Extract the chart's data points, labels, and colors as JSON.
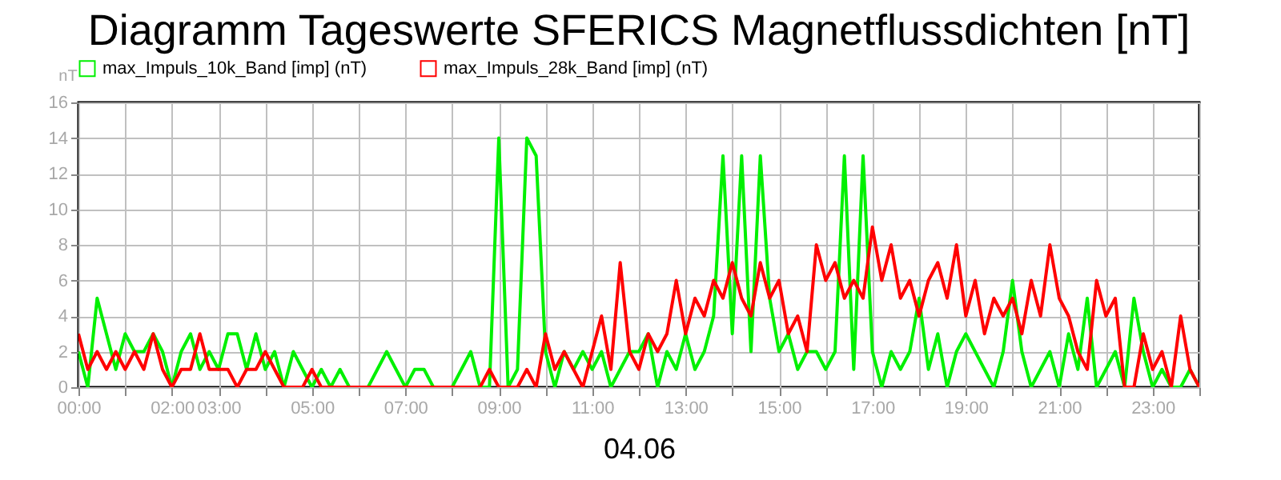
{
  "chart_data": {
    "type": "line",
    "title": "Diagramm Tageswerte SFERICS Magnetflussdichten [nT]",
    "xlabel": "04.06",
    "ylabel": "nT",
    "x": [
      0,
      0.2,
      0.4,
      0.6,
      0.8,
      1,
      1.2,
      1.4,
      1.6,
      1.8,
      2,
      2.2,
      2.4,
      2.6,
      2.8,
      3,
      3.2,
      3.4,
      3.6,
      3.8,
      4,
      4.2,
      4.4,
      4.6,
      4.8,
      5,
      5.2,
      5.4,
      5.6,
      5.8,
      6,
      6.2,
      6.4,
      6.6,
      6.8,
      7,
      7.2,
      7.4,
      7.6,
      7.8,
      8,
      8.2,
      8.4,
      8.6,
      8.8,
      9,
      9.2,
      9.4,
      9.6,
      9.8,
      10,
      10.2,
      10.4,
      10.6,
      10.8,
      11,
      11.2,
      11.4,
      11.6,
      11.8,
      12,
      12.2,
      12.4,
      12.6,
      12.8,
      13,
      13.2,
      13.4,
      13.6,
      13.8,
      14,
      14.2,
      14.4,
      14.6,
      14.8,
      15,
      15.2,
      15.4,
      15.6,
      15.8,
      16,
      16.2,
      16.4,
      16.6,
      16.8,
      17,
      17.2,
      17.4,
      17.6,
      17.8,
      18,
      18.2,
      18.4,
      18.6,
      18.8,
      19,
      19.2,
      19.4,
      19.6,
      19.8,
      20,
      20.2,
      20.4,
      20.6,
      20.8,
      21,
      21.2,
      21.4,
      21.6,
      21.8,
      22,
      22.2,
      22.4,
      22.6,
      22.8,
      23,
      23.2,
      23.4,
      23.6,
      23.8,
      24
    ],
    "series": [
      {
        "name": "max_Impuls_10k_Band [imp] (nT)",
        "color": "#00f000",
        "values": [
          2,
          0,
          5,
          3,
          1,
          3,
          2,
          2,
          3,
          2,
          0,
          2,
          3,
          1,
          2,
          1,
          3,
          3,
          1,
          3,
          1,
          2,
          0,
          2,
          1,
          0,
          1,
          0,
          1,
          0,
          0,
          0,
          1,
          2,
          1,
          0,
          1,
          1,
          0,
          0,
          0,
          1,
          2,
          0,
          0,
          14,
          0,
          1,
          14,
          13,
          2,
          0,
          2,
          1,
          2,
          1,
          2,
          0,
          1,
          2,
          2,
          3,
          0,
          2,
          1,
          3,
          1,
          2,
          4,
          13,
          3,
          13,
          2,
          13,
          5,
          2,
          3,
          1,
          2,
          2,
          1,
          2,
          13,
          1,
          13,
          2,
          0,
          2,
          1,
          2,
          5,
          1,
          3,
          0,
          2,
          3,
          2,
          1,
          0,
          2,
          6,
          2,
          0,
          1,
          2,
          0,
          3,
          1,
          5,
          0,
          1,
          2,
          0,
          5,
          2,
          0,
          1,
          0,
          0,
          1,
          0
        ]
      },
      {
        "name": "max_Impuls_28k_Band [imp] (nT)",
        "color": "#ff0000",
        "values": [
          3,
          1,
          2,
          1,
          2,
          1,
          2,
          1,
          3,
          1,
          0,
          1,
          1,
          3,
          1,
          1,
          1,
          0,
          1,
          1,
          2,
          1,
          0,
          0,
          0,
          1,
          0,
          0,
          0,
          0,
          0,
          0,
          0,
          0,
          0,
          0,
          0,
          0,
          0,
          0,
          0,
          0,
          0,
          0,
          1,
          0,
          0,
          0,
          1,
          0,
          3,
          1,
          2,
          1,
          0,
          2,
          4,
          1,
          7,
          2,
          1,
          3,
          2,
          3,
          6,
          3,
          5,
          4,
          6,
          5,
          7,
          5,
          4,
          7,
          5,
          6,
          3,
          4,
          2,
          8,
          6,
          7,
          5,
          6,
          5,
          9,
          6,
          8,
          5,
          6,
          4,
          6,
          7,
          5,
          8,
          4,
          6,
          3,
          5,
          4,
          5,
          3,
          6,
          4,
          8,
          5,
          4,
          2,
          1,
          6,
          4,
          5,
          0,
          0,
          3,
          1,
          2,
          0,
          4,
          1,
          0
        ]
      }
    ],
    "xlim": [
      0,
      24
    ],
    "xticks": [
      {
        "value": 0,
        "label": "00:00"
      },
      {
        "value": 1,
        "label": null
      },
      {
        "value": 2,
        "label": "02:00"
      },
      {
        "value": 3,
        "label": "03:00"
      },
      {
        "value": 4,
        "label": null
      },
      {
        "value": 5,
        "label": "05:00"
      },
      {
        "value": 6,
        "label": null
      },
      {
        "value": 7,
        "label": "07:00"
      },
      {
        "value": 8,
        "label": null
      },
      {
        "value": 9,
        "label": "09:00"
      },
      {
        "value": 10,
        "label": null
      },
      {
        "value": 11,
        "label": "11:00"
      },
      {
        "value": 12,
        "label": null
      },
      {
        "value": 13,
        "label": "13:00"
      },
      {
        "value": 14,
        "label": null
      },
      {
        "value": 15,
        "label": "15:00"
      },
      {
        "value": 16,
        "label": null
      },
      {
        "value": 17,
        "label": "17:00"
      },
      {
        "value": 18,
        "label": null
      },
      {
        "value": 19,
        "label": "19:00"
      },
      {
        "value": 20,
        "label": null
      },
      {
        "value": 21,
        "label": "21:00"
      },
      {
        "value": 22,
        "label": null
      },
      {
        "value": 23,
        "label": "23:00"
      },
      {
        "value": 24,
        "label": null
      }
    ],
    "ylim": [
      0,
      16
    ],
    "yticks": [
      0,
      2,
      4,
      6,
      8,
      10,
      12,
      14,
      16
    ],
    "grid": true,
    "legend": "top left"
  }
}
